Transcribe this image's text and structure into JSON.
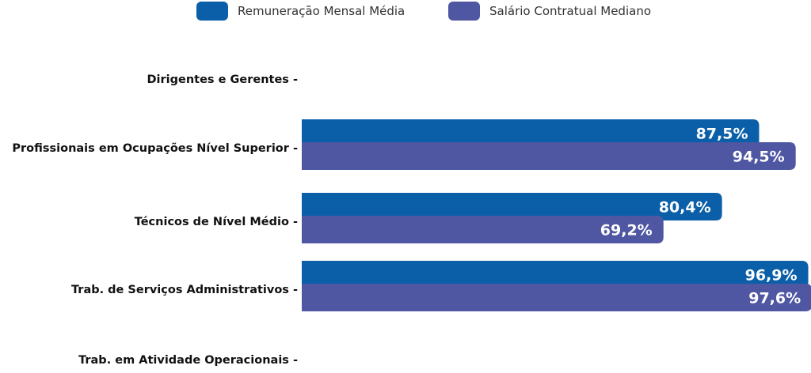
{
  "chart_data": {
    "type": "bar",
    "orientation": "horizontal",
    "categories": [
      "Dirigentes e Gerentes",
      "Profissionais em Ocupações Nível Superior",
      "Técnicos de Nível Médio",
      "Trab. de Serviços Administrativos",
      "Trab. em Atividade Operacionais"
    ],
    "series": [
      {
        "name": "Remuneração Mensal Média",
        "color": "#0a5fa8",
        "values": [
          null,
          87.5,
          80.4,
          96.9,
          null
        ],
        "labels": [
          "",
          "87,5%",
          "80,4%",
          "96,9%",
          ""
        ]
      },
      {
        "name": "Salário Contratual Mediano",
        "color": "#4f57a3",
        "values": [
          null,
          94.5,
          69.2,
          97.6,
          null
        ],
        "labels": [
          "",
          "94,5%",
          "69,2%",
          "97,6%",
          ""
        ]
      }
    ],
    "title": "",
    "xlabel": "",
    "ylabel": "",
    "legend_position": "top-center",
    "grid": false
  }
}
